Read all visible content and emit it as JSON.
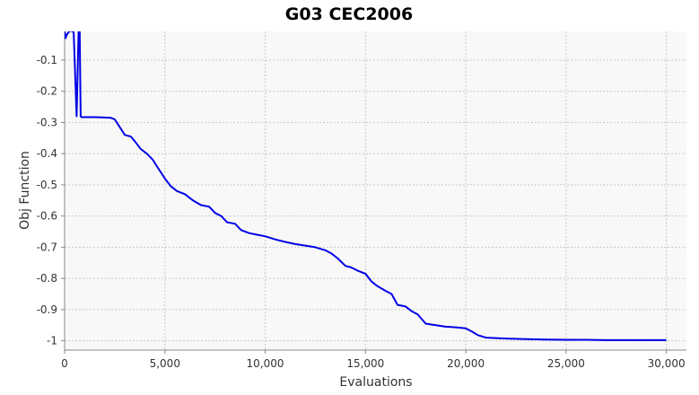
{
  "chart_data": {
    "type": "line",
    "title": "G03 CEC2006",
    "xlabel": "Evaluations",
    "ylabel": "Obj Function",
    "xlim": [
      0,
      31000
    ],
    "ylim": [
      -1.03,
      -0.008
    ],
    "xticks": [
      0,
      5000,
      10000,
      15000,
      20000,
      25000,
      30000
    ],
    "xtick_labels": [
      "0",
      "5,000",
      "10,000",
      "15,000",
      "20,000",
      "25,000",
      "30,000"
    ],
    "yticks": [
      -1,
      -0.9,
      -0.8,
      -0.7,
      -0.6,
      -0.5,
      -0.4,
      -0.3,
      -0.2,
      -0.1
    ],
    "ytick_labels": [
      "-1",
      "-0.9",
      "-0.8",
      "-0.7",
      "-0.6",
      "-0.5",
      "-0.4",
      "-0.3",
      "-0.2",
      "-0.1"
    ],
    "grid": true,
    "colors": {
      "line": "#0000e6",
      "plot_bg": "#f8f8f8",
      "grid": "#c8c8c8"
    },
    "series": [
      {
        "x": [
          0,
          50,
          100,
          200,
          300,
          450,
          600,
          700,
          750,
          800,
          850,
          900,
          1000,
          1500,
          2000,
          2300,
          2500,
          2700,
          3000,
          3300,
          3500,
          3800,
          4100,
          4400,
          4600,
          4800,
          5000,
          5300,
          5600,
          6000,
          6400,
          6800,
          7200,
          7500,
          7800,
          8100,
          8500,
          8800,
          9200,
          9600,
          10000,
          10500,
          11000,
          11500,
          12000,
          12500,
          13000,
          13300,
          13600,
          14000,
          14300,
          14600,
          15000,
          15300,
          15600,
          16000,
          16300,
          16600,
          17000,
          17300,
          17600,
          18000,
          18500,
          19000,
          19500,
          20000,
          20300,
          20600,
          21000,
          22000,
          23000,
          24000,
          25000,
          26000,
          27000,
          28000,
          29000,
          30000
        ],
        "y": [
          -0.005,
          -0.03,
          -0.02,
          -0.01,
          -0.005,
          -0.01,
          -0.28,
          -0.005,
          -0.005,
          -0.28,
          -0.283,
          -0.283,
          -0.283,
          -0.283,
          -0.284,
          -0.285,
          -0.29,
          -0.31,
          -0.34,
          -0.345,
          -0.36,
          -0.385,
          -0.4,
          -0.42,
          -0.44,
          -0.46,
          -0.48,
          -0.505,
          -0.52,
          -0.53,
          -0.55,
          -0.565,
          -0.57,
          -0.59,
          -0.6,
          -0.62,
          -0.625,
          -0.645,
          -0.655,
          -0.66,
          -0.665,
          -0.675,
          -0.683,
          -0.69,
          -0.695,
          -0.7,
          -0.71,
          -0.72,
          -0.735,
          -0.76,
          -0.765,
          -0.775,
          -0.785,
          -0.81,
          -0.825,
          -0.84,
          -0.85,
          -0.885,
          -0.89,
          -0.905,
          -0.915,
          -0.945,
          -0.95,
          -0.955,
          -0.957,
          -0.96,
          -0.97,
          -0.982,
          -0.99,
          -0.993,
          -0.995,
          -0.996,
          -0.997,
          -0.997,
          -0.998,
          -0.998,
          -0.998,
          -0.998
        ]
      }
    ]
  }
}
